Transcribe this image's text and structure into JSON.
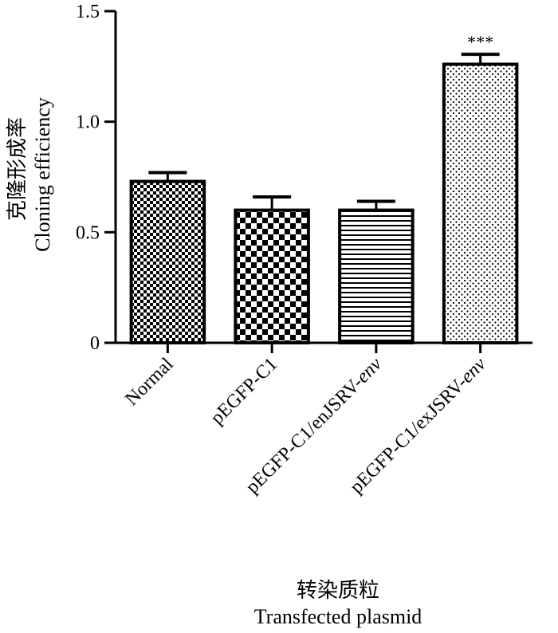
{
  "chart_data": {
    "type": "bar",
    "categories": [
      "Normal",
      "pEGFP-C1",
      "pEGFP-C1/enJSRV-env",
      "pEGFP-C1/exJSRV-env"
    ],
    "category_parts": [
      [
        {
          "text": "Normal",
          "italic": false
        }
      ],
      [
        {
          "text": "pEGFP-C1",
          "italic": false
        }
      ],
      [
        {
          "text": "pEGFP-C1/enJSRV-",
          "italic": false
        },
        {
          "text": "env",
          "italic": true
        }
      ],
      [
        {
          "text": "pEGFP-C1/exJSRV-",
          "italic": false
        },
        {
          "text": "env",
          "italic": true
        }
      ]
    ],
    "values": [
      0.73,
      0.6,
      0.6,
      1.26
    ],
    "errors": [
      0.04,
      0.06,
      0.04,
      0.045
    ],
    "patterns": [
      "fine-checker",
      "checker",
      "horizontal-lines",
      "dots"
    ],
    "annotations": [
      "",
      "",
      "",
      "***"
    ],
    "ylim": [
      0,
      1.5
    ],
    "yticks": [
      0,
      0.5,
      1.0,
      1.5
    ],
    "ytick_labels": [
      "0",
      "0.5",
      "1.0",
      "1.5"
    ],
    "ylabel_cn": "克隆形成率",
    "ylabel_en": "Cloning efficiency",
    "xlabel_cn": "转染质粒",
    "xlabel_en": "Transfected plasmid",
    "grid": false,
    "bar_color": "#000000"
  }
}
